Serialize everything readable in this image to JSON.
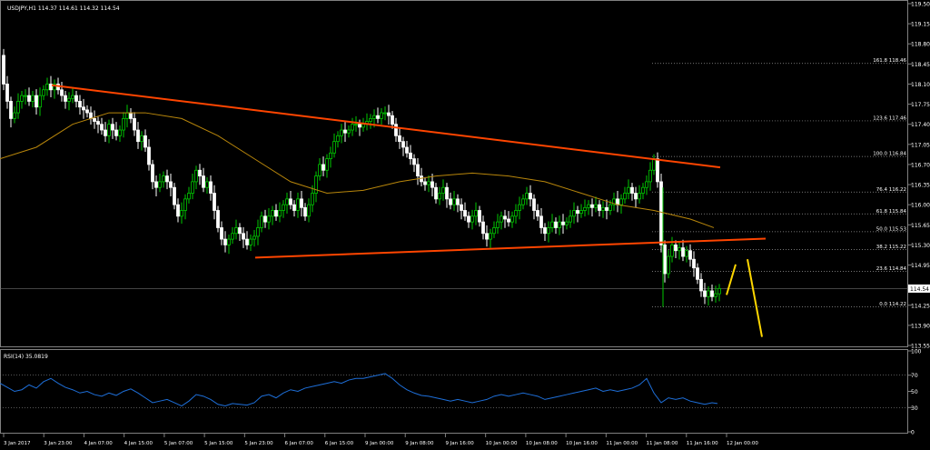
{
  "chart_data": [
    {
      "type": "candlestick",
      "title": "USDJPY,H1  114.37 114.61 114.32 114.54",
      "ylim": [
        113.55,
        119.5
      ],
      "y_ticks": [
        "119.50",
        "119.15",
        "118.80",
        "118.45",
        "118.10",
        "117.75",
        "117.40",
        "117.05",
        "116.70",
        "116.35",
        "116.00",
        "115.65",
        "115.30",
        "114.95",
        "114.54",
        "114.25",
        "113.90",
        "113.55"
      ],
      "current_price": "114.54",
      "x_ticks": [
        "3 Jan 2017",
        "3 Jan 23:00",
        "4 Jan 07:00",
        "4 Jan 15:00",
        "5 Jan 07:00",
        "5 Jan 15:00",
        "5 Jan 23:00",
        "6 Jan 07:00",
        "6 Jan 15:00",
        "9 Jan 00:00",
        "9 Jan 08:00",
        "9 Jan 16:00",
        "10 Jan 00:00",
        "10 Jan 08:00",
        "10 Jan 16:00",
        "11 Jan 00:00",
        "11 Jan 08:00",
        "11 Jan 16:00",
        "12 Jan 00:00"
      ],
      "fib_levels": [
        {
          "label": "161.8 118.46",
          "value": 118.46
        },
        {
          "label": "123.6 117.46",
          "value": 117.46
        },
        {
          "label": "100.0 116.84",
          "value": 116.84
        },
        {
          "label": "76.4 116.22",
          "value": 116.22
        },
        {
          "label": "61.8 115.84",
          "value": 115.84
        },
        {
          "label": "50.0 115.53",
          "value": 115.53
        },
        {
          "label": "38.2 115.22",
          "value": 115.22
        },
        {
          "label": "23.6 114.84",
          "value": 114.84
        },
        {
          "label": "0.0 114.22",
          "value": 114.22
        }
      ],
      "close_path": [
        [
          0,
          118.6
        ],
        [
          4,
          118.1
        ],
        [
          8,
          117.8
        ],
        [
          12,
          117.5
        ],
        [
          16,
          117.6
        ],
        [
          20,
          117.8
        ],
        [
          24,
          117.9
        ],
        [
          28,
          117.9
        ],
        [
          32,
          117.8
        ],
        [
          36,
          117.9
        ],
        [
          40,
          117.7
        ],
        [
          44,
          117.9
        ],
        [
          48,
          118.0
        ],
        [
          52,
          118.1
        ],
        [
          56,
          118.0
        ],
        [
          60,
          118.1
        ],
        [
          64,
          118.0
        ],
        [
          68,
          117.9
        ],
        [
          72,
          117.8
        ],
        [
          76,
          117.85
        ],
        [
          80,
          117.9
        ],
        [
          84,
          117.8
        ],
        [
          88,
          117.7
        ],
        [
          92,
          117.65
        ],
        [
          96,
          117.6
        ],
        [
          100,
          117.5
        ],
        [
          104,
          117.45
        ],
        [
          108,
          117.4
        ],
        [
          112,
          117.3
        ],
        [
          116,
          117.2
        ],
        [
          120,
          117.4
        ],
        [
          124,
          117.3
        ],
        [
          128,
          117.2
        ],
        [
          132,
          117.3
        ],
        [
          136,
          117.5
        ],
        [
          140,
          117.6
        ],
        [
          144,
          117.5
        ],
        [
          148,
          117.3
        ],
        [
          152,
          117.1
        ],
        [
          156,
          117.2
        ],
        [
          160,
          117.0
        ],
        [
          164,
          116.7
        ],
        [
          168,
          116.4
        ],
        [
          172,
          116.3
        ],
        [
          176,
          116.4
        ],
        [
          180,
          116.5
        ],
        [
          184,
          116.4
        ],
        [
          188,
          116.3
        ],
        [
          192,
          116.0
        ],
        [
          196,
          115.8
        ],
        [
          200,
          115.9
        ],
        [
          204,
          116.1
        ],
        [
          208,
          116.2
        ],
        [
          212,
          116.4
        ],
        [
          216,
          116.6
        ],
        [
          220,
          116.5
        ],
        [
          224,
          116.3
        ],
        [
          228,
          116.4
        ],
        [
          232,
          116.2
        ],
        [
          236,
          115.9
        ],
        [
          240,
          115.6
        ],
        [
          244,
          115.4
        ],
        [
          248,
          115.3
        ],
        [
          252,
          115.4
        ],
        [
          256,
          115.5
        ],
        [
          260,
          115.6
        ],
        [
          264,
          115.5
        ],
        [
          268,
          115.4
        ],
        [
          272,
          115.3
        ],
        [
          276,
          115.4
        ],
        [
          280,
          115.45
        ],
        [
          284,
          115.6
        ],
        [
          288,
          115.8
        ],
        [
          292,
          115.7
        ],
        [
          296,
          115.8
        ],
        [
          300,
          115.9
        ],
        [
          304,
          115.8
        ],
        [
          308,
          115.9
        ],
        [
          312,
          116.0
        ],
        [
          316,
          116.1
        ],
        [
          320,
          116.0
        ],
        [
          324,
          115.9
        ],
        [
          328,
          116.1
        ],
        [
          332,
          115.95
        ],
        [
          336,
          115.8
        ],
        [
          340,
          116.0
        ],
        [
          344,
          116.2
        ],
        [
          348,
          116.5
        ],
        [
          352,
          116.7
        ],
        [
          356,
          116.6
        ],
        [
          360,
          116.8
        ],
        [
          364,
          116.9
        ],
        [
          368,
          117.1
        ],
        [
          372,
          117.2
        ],
        [
          376,
          117.3
        ],
        [
          380,
          117.25
        ],
        [
          384,
          117.3
        ],
        [
          388,
          117.4
        ],
        [
          392,
          117.4
        ],
        [
          396,
          117.35
        ],
        [
          400,
          117.4
        ],
        [
          404,
          117.45
        ],
        [
          408,
          117.5
        ],
        [
          412,
          117.55
        ],
        [
          416,
          117.5
        ],
        [
          420,
          117.6
        ],
        [
          424,
          117.6
        ],
        [
          428,
          117.55
        ],
        [
          432,
          117.4
        ],
        [
          436,
          117.2
        ],
        [
          440,
          117.1
        ],
        [
          444,
          117.0
        ],
        [
          448,
          116.9
        ],
        [
          452,
          116.8
        ],
        [
          456,
          116.7
        ],
        [
          460,
          116.5
        ],
        [
          464,
          116.4
        ],
        [
          468,
          116.35
        ],
        [
          472,
          116.4
        ],
        [
          476,
          116.3
        ],
        [
          480,
          116.1
        ],
        [
          484,
          116.2
        ],
        [
          488,
          116.3
        ],
        [
          492,
          116.1
        ],
        [
          496,
          116.0
        ],
        [
          500,
          116.1
        ],
        [
          504,
          116.0
        ],
        [
          508,
          115.9
        ],
        [
          512,
          115.8
        ],
        [
          516,
          115.7
        ],
        [
          520,
          115.8
        ],
        [
          524,
          115.9
        ],
        [
          528,
          115.7
        ],
        [
          532,
          115.5
        ],
        [
          536,
          115.4
        ],
        [
          540,
          115.5
        ],
        [
          544,
          115.6
        ],
        [
          548,
          115.7
        ],
        [
          552,
          115.8
        ],
        [
          556,
          115.75
        ],
        [
          560,
          115.7
        ],
        [
          564,
          115.8
        ],
        [
          568,
          115.9
        ],
        [
          572,
          116.0
        ],
        [
          576,
          116.1
        ],
        [
          580,
          116.2
        ],
        [
          584,
          116.1
        ],
        [
          588,
          115.9
        ],
        [
          592,
          115.8
        ],
        [
          596,
          115.6
        ],
        [
          600,
          115.5
        ],
        [
          604,
          115.6
        ],
        [
          608,
          115.7
        ],
        [
          612,
          115.6
        ],
        [
          616,
          115.7
        ],
        [
          620,
          115.65
        ],
        [
          624,
          115.7
        ],
        [
          628,
          115.8
        ],
        [
          632,
          115.9
        ],
        [
          636,
          115.85
        ],
        [
          640,
          115.9
        ],
        [
          644,
          115.95
        ],
        [
          648,
          116.0
        ],
        [
          652,
          115.95
        ],
        [
          656,
          116.0
        ],
        [
          660,
          115.9
        ],
        [
          664,
          115.95
        ],
        [
          668,
          115.9
        ],
        [
          672,
          116.0
        ],
        [
          676,
          116.1
        ],
        [
          680,
          116.0
        ],
        [
          684,
          116.1
        ],
        [
          688,
          116.2
        ],
        [
          692,
          116.3
        ],
        [
          696,
          116.2
        ],
        [
          700,
          116.1
        ],
        [
          704,
          116.2
        ],
        [
          708,
          116.3
        ],
        [
          712,
          116.4
        ],
        [
          716,
          116.6
        ],
        [
          720,
          116.8
        ],
        [
          724,
          116.4
        ],
        [
          728,
          115.3
        ],
        [
          732,
          114.8
        ],
        [
          736,
          115.1
        ],
        [
          740,
          115.3
        ],
        [
          744,
          115.2
        ],
        [
          748,
          115.25
        ],
        [
          752,
          115.1
        ],
        [
          756,
          115.2
        ],
        [
          760,
          115.05
        ],
        [
          764,
          114.9
        ],
        [
          768,
          114.7
        ],
        [
          772,
          114.5
        ],
        [
          776,
          114.4
        ],
        [
          780,
          114.5
        ],
        [
          784,
          114.4
        ],
        [
          788,
          114.45
        ],
        [
          792,
          114.54
        ]
      ],
      "ma_path": [
        [
          0,
          116.8
        ],
        [
          40,
          117.0
        ],
        [
          80,
          117.4
        ],
        [
          120,
          117.6
        ],
        [
          160,
          117.6
        ],
        [
          200,
          117.5
        ],
        [
          240,
          117.2
        ],
        [
          280,
          116.8
        ],
        [
          320,
          116.4
        ],
        [
          360,
          116.2
        ],
        [
          400,
          116.25
        ],
        [
          440,
          116.4
        ],
        [
          480,
          116.5
        ],
        [
          520,
          116.55
        ],
        [
          560,
          116.5
        ],
        [
          600,
          116.4
        ],
        [
          640,
          116.2
        ],
        [
          680,
          116.0
        ],
        [
          720,
          115.9
        ],
        [
          760,
          115.75
        ],
        [
          786,
          115.6
        ]
      ],
      "trendlines": [
        {
          "color": "#ff4500",
          "from": [
            57,
            118.08
          ],
          "to": [
            793,
            116.65
          ]
        },
        {
          "color": "#ff4500",
          "from": [
            281,
            115.08
          ],
          "to": [
            843,
            115.41
          ]
        }
      ],
      "projection": {
        "color": "#ffd700",
        "segments": [
          [
            [
              800,
              114.43
            ],
            [
              810,
              114.96
            ]
          ],
          [
            [
              823,
              115.05
            ],
            [
              839,
              113.7
            ]
          ]
        ]
      }
    },
    {
      "type": "line",
      "title": "RSI(14) 35.0819",
      "ylim": [
        0,
        100
      ],
      "y_ticks": [
        "100",
        "70",
        "50",
        "30",
        "0"
      ],
      "line_color": "#1e6fd9",
      "values_path": [
        [
          0,
          60
        ],
        [
          8,
          55
        ],
        [
          16,
          50
        ],
        [
          24,
          52
        ],
        [
          32,
          58
        ],
        [
          40,
          54
        ],
        [
          48,
          62
        ],
        [
          56,
          66
        ],
        [
          64,
          60
        ],
        [
          72,
          55
        ],
        [
          80,
          52
        ],
        [
          88,
          48
        ],
        [
          96,
          50
        ],
        [
          104,
          46
        ],
        [
          112,
          44
        ],
        [
          120,
          48
        ],
        [
          128,
          45
        ],
        [
          136,
          50
        ],
        [
          144,
          53
        ],
        [
          152,
          48
        ],
        [
          160,
          42
        ],
        [
          168,
          36
        ],
        [
          176,
          38
        ],
        [
          184,
          40
        ],
        [
          192,
          36
        ],
        [
          200,
          32
        ],
        [
          208,
          38
        ],
        [
          216,
          46
        ],
        [
          224,
          44
        ],
        [
          232,
          40
        ],
        [
          240,
          34
        ],
        [
          248,
          32
        ],
        [
          256,
          35
        ],
        [
          264,
          34
        ],
        [
          272,
          33
        ],
        [
          280,
          36
        ],
        [
          288,
          44
        ],
        [
          296,
          46
        ],
        [
          304,
          42
        ],
        [
          312,
          48
        ],
        [
          320,
          52
        ],
        [
          328,
          50
        ],
        [
          336,
          54
        ],
        [
          344,
          56
        ],
        [
          352,
          58
        ],
        [
          360,
          60
        ],
        [
          368,
          62
        ],
        [
          376,
          60
        ],
        [
          384,
          64
        ],
        [
          392,
          66
        ],
        [
          400,
          66
        ],
        [
          408,
          68
        ],
        [
          416,
          70
        ],
        [
          424,
          72
        ],
        [
          432,
          66
        ],
        [
          440,
          58
        ],
        [
          448,
          52
        ],
        [
          456,
          48
        ],
        [
          464,
          45
        ],
        [
          472,
          44
        ],
        [
          480,
          42
        ],
        [
          488,
          40
        ],
        [
          496,
          38
        ],
        [
          504,
          40
        ],
        [
          512,
          38
        ],
        [
          520,
          36
        ],
        [
          528,
          38
        ],
        [
          536,
          40
        ],
        [
          544,
          44
        ],
        [
          552,
          46
        ],
        [
          560,
          44
        ],
        [
          568,
          46
        ],
        [
          576,
          48
        ],
        [
          584,
          46
        ],
        [
          592,
          44
        ],
        [
          600,
          40
        ],
        [
          608,
          42
        ],
        [
          616,
          44
        ],
        [
          624,
          46
        ],
        [
          632,
          48
        ],
        [
          640,
          50
        ],
        [
          648,
          52
        ],
        [
          656,
          54
        ],
        [
          664,
          50
        ],
        [
          672,
          52
        ],
        [
          680,
          50
        ],
        [
          688,
          52
        ],
        [
          696,
          54
        ],
        [
          704,
          58
        ],
        [
          712,
          66
        ],
        [
          720,
          48
        ],
        [
          728,
          36
        ],
        [
          736,
          42
        ],
        [
          744,
          40
        ],
        [
          752,
          42
        ],
        [
          760,
          38
        ],
        [
          768,
          36
        ],
        [
          776,
          34
        ],
        [
          784,
          36
        ],
        [
          790,
          35
        ]
      ]
    }
  ]
}
